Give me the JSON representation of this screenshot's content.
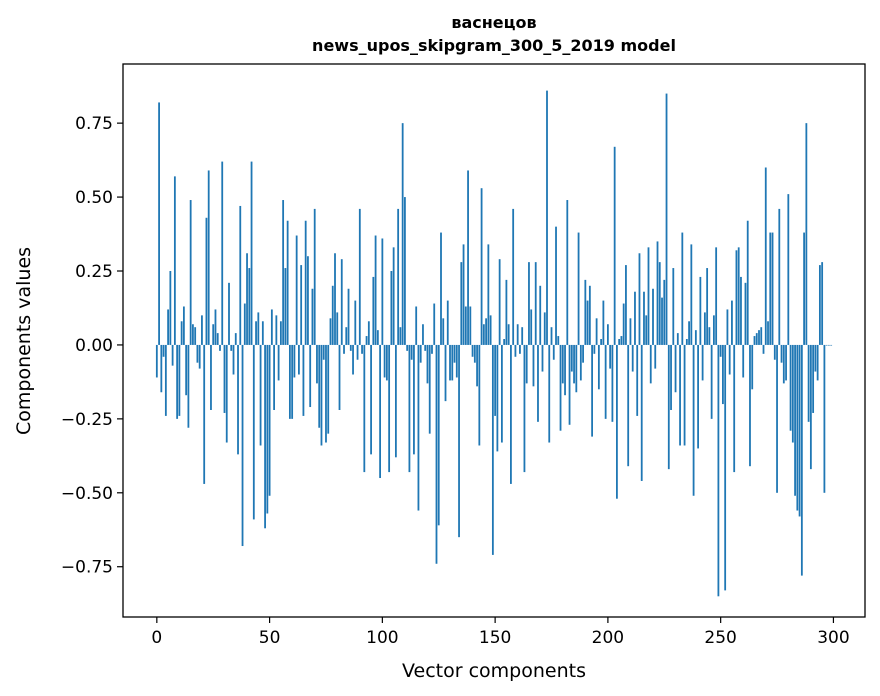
{
  "chart_data": {
    "type": "bar",
    "title": "васнецов",
    "subtitle": "news_upos_skipgram_300_5_2019 model",
    "xlabel": "Vector components",
    "ylabel": "Components values",
    "xlim": [
      -15,
      314
    ],
    "ylim": [
      -0.92,
      0.95
    ],
    "x_ticks": [
      0,
      50,
      100,
      150,
      200,
      250,
      300
    ],
    "x_tick_labels": [
      "0",
      "50",
      "100",
      "150",
      "200",
      "250",
      "300"
    ],
    "y_ticks": [
      0.75,
      0.5,
      0.25,
      0.0,
      -0.25,
      -0.5,
      -0.75
    ],
    "y_tick_labels": [
      "0.75",
      "0.50",
      "0.25",
      "0.00",
      "−0.25",
      "−0.50",
      "−0.75"
    ],
    "bar_color": "#1f77b4",
    "grid": false,
    "x": "0..299 (component index)",
    "values": [
      -0.11,
      0.82,
      -0.16,
      -0.04,
      -0.24,
      0.12,
      0.25,
      -0.07,
      0.57,
      -0.25,
      -0.24,
      0.08,
      0.13,
      -0.17,
      -0.28,
      0.49,
      0.07,
      0.06,
      -0.06,
      -0.08,
      0.1,
      -0.47,
      0.43,
      0.59,
      -0.22,
      0.07,
      0.12,
      0.04,
      -0.02,
      0.62,
      -0.23,
      -0.33,
      0.21,
      -0.02,
      -0.1,
      0.04,
      -0.37,
      0.47,
      -0.68,
      0.14,
      0.31,
      0.26,
      0.62,
      -0.59,
      0.08,
      0.11,
      -0.34,
      0.08,
      -0.62,
      -0.57,
      -0.51,
      0.12,
      -0.22,
      0.1,
      -0.12,
      0.08,
      0.49,
      0.26,
      0.42,
      -0.25,
      -0.25,
      -0.11,
      0.37,
      -0.1,
      0.27,
      -0.24,
      0.42,
      0.3,
      -0.21,
      0.19,
      0.46,
      -0.13,
      -0.28,
      -0.34,
      -0.05,
      -0.33,
      -0.3,
      0.09,
      0.2,
      0.31,
      0.11,
      -0.22,
      0.29,
      -0.03,
      0.06,
      0.19,
      -0.02,
      -0.1,
      0.15,
      -0.05,
      0.46,
      -0.03,
      -0.43,
      0.03,
      0.08,
      -0.37,
      0.23,
      0.37,
      0.05,
      -0.45,
      0.36,
      -0.11,
      -0.12,
      -0.43,
      0.25,
      0.33,
      -0.38,
      0.46,
      0.06,
      0.75,
      0.5,
      -0.02,
      -0.43,
      -0.05,
      -0.37,
      0.13,
      -0.56,
      -0.06,
      0.07,
      -0.02,
      -0.13,
      -0.3,
      -0.03,
      0.14,
      -0.74,
      -0.61,
      0.38,
      0.09,
      -0.19,
      0.15,
      -0.12,
      -0.12,
      -0.06,
      -0.11,
      -0.65,
      0.28,
      0.34,
      0.13,
      0.59,
      0.13,
      -0.04,
      -0.06,
      -0.14,
      -0.34,
      0.53,
      0.07,
      0.09,
      0.34,
      0.1,
      -0.71,
      -0.24,
      -0.36,
      0.29,
      -0.33,
      0.02,
      0.22,
      0.07,
      -0.47,
      0.46,
      -0.04,
      0.07,
      -0.03,
      0.06,
      -0.43,
      -0.13,
      0.28,
      0.12,
      -0.14,
      0.28,
      -0.26,
      0.2,
      -0.09,
      0.11,
      0.86,
      -0.33,
      0.06,
      -0.05,
      0.4,
      0.03,
      -0.29,
      -0.13,
      -0.17,
      0.49,
      -0.27,
      -0.09,
      -0.13,
      -0.16,
      0.38,
      -0.12,
      -0.06,
      0.22,
      0.15,
      0.2,
      -0.31,
      -0.03,
      0.09,
      -0.15,
      0.02,
      0.15,
      -0.25,
      0.07,
      -0.08,
      -0.26,
      0.67,
      -0.52,
      0.02,
      0.03,
      0.14,
      0.27,
      -0.41,
      0.09,
      -0.09,
      0.18,
      -0.24,
      0.31,
      -0.46,
      0.18,
      0.1,
      0.33,
      -0.13,
      0.19,
      -0.08,
      0.35,
      0.28,
      0.16,
      0.22,
      0.85,
      -0.42,
      -0.22,
      0.26,
      -0.16,
      0.04,
      -0.34,
      0.38,
      -0.34,
      0.02,
      0.08,
      0.34,
      -0.51,
      0.05,
      -0.35,
      0.23,
      -0.12,
      0.11,
      0.26,
      0.06,
      -0.25,
      0.1,
      0.33,
      -0.85,
      -0.04,
      -0.2,
      -0.83,
      0.12,
      -0.1,
      0.15,
      -0.43,
      0.32,
      0.33,
      0.23,
      -0.11,
      0.21,
      0.42,
      -0.41,
      -0.15,
      0.03,
      0.04,
      0.05,
      0.06,
      -0.03,
      0.6,
      0.08,
      0.38,
      0.38,
      -0.05,
      -0.5,
      0.46,
      -0.06,
      -0.13,
      -0.12,
      0.51,
      -0.29,
      -0.33,
      -0.51,
      -0.56,
      -0.58,
      -0.78,
      0.38,
      0.75,
      -0.26,
      -0.42,
      -0.23,
      -0.09,
      -0.12,
      0.27,
      0.28,
      -0.5,
      0.0,
      0.0,
      0.0
    ]
  }
}
